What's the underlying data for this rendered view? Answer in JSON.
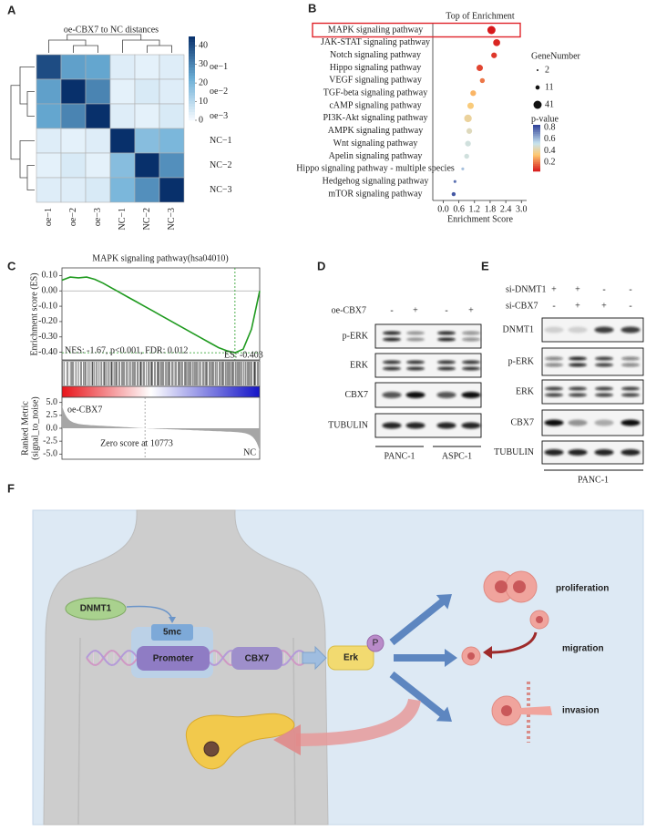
{
  "panel_labels": [
    "A",
    "B",
    "C",
    "D",
    "E",
    "F"
  ],
  "heatmap": {
    "type": "heatmap",
    "title": "oe-CBX7 to NC distances",
    "rows": [
      "oe−1",
      "oe−2",
      "oe−3",
      "NC−1",
      "NC−2",
      "NC−3"
    ],
    "columns": [
      "oe−1",
      "oe−2",
      "oe−3",
      "NC−1",
      "NC−2",
      "NC−3"
    ],
    "values": [
      [
        40,
        25,
        24,
        4,
        3,
        4
      ],
      [
        25,
        45,
        30,
        3,
        5,
        4
      ],
      [
        24,
        30,
        45,
        4,
        3,
        5
      ],
      [
        4,
        3,
        4,
        45,
        18,
        20
      ],
      [
        3,
        5,
        3,
        18,
        45,
        28
      ],
      [
        4,
        4,
        5,
        20,
        28,
        45
      ]
    ],
    "clim": [
      0,
      45
    ],
    "colorbar_ticks": [
      0,
      10,
      20,
      30,
      40
    ]
  },
  "enrichment": {
    "type": "scatter",
    "title": "Top of Enrichment",
    "categories": [
      "MAPK signaling pathway",
      "JAK-STAT signaling pathway",
      "Notch signaling pathway",
      "Hippo signaling pathway",
      "VEGF signaling pathway",
      "TGF-beta signaling pathway",
      "cAMP signaling pathway",
      "PI3K-Akt signaling pathway",
      "AMPK signaling pathway",
      "Wnt signaling pathway",
      "Apelin signaling pathway",
      "Hippo signaling pathway - multiple species",
      "Hedgehog signaling pathway",
      "mTOR signaling pathway"
    ],
    "x": [
      1.85,
      2.05,
      1.95,
      1.4,
      1.5,
      1.15,
      1.05,
      0.95,
      1.0,
      0.95,
      0.9,
      0.75,
      0.45,
      0.4
    ],
    "sizes": [
      41,
      30,
      20,
      25,
      15,
      20,
      25,
      35,
      20,
      20,
      15,
      5,
      5,
      10
    ],
    "pvalues": [
      0.05,
      0.07,
      0.1,
      0.12,
      0.2,
      0.3,
      0.35,
      0.4,
      0.45,
      0.5,
      0.5,
      0.6,
      0.75,
      0.8
    ],
    "xlabel": "Enrichment Score",
    "xlim": [
      -0.4,
      3.2
    ],
    "xticks": [
      {
        "value": 0,
        "label": "0.0"
      },
      0.6,
      1.2,
      1.8,
      2.4,
      {
        "value": 3,
        "label": "3.0"
      }
    ],
    "highlight": 0,
    "highlight_color": "#e0242b",
    "size_legend_title": "GeneNumber",
    "size_legend": [
      2,
      11,
      41
    ],
    "color_legend_title": "p-value",
    "color_legend_ticks": [
      0.8,
      0.6,
      0.4,
      0.2
    ],
    "clim": [
      0.05,
      0.85
    ]
  },
  "gsea": {
    "type": "line",
    "title": "MAPK signaling pathway(hsa04010)",
    "ylabel": "Enrichment score (ES)",
    "values": [
      0.07,
      0.09,
      0.085,
      0.09,
      0.075,
      0.05,
      0.02,
      -0.01,
      -0.04,
      -0.07,
      -0.1,
      -0.13,
      -0.16,
      -0.19,
      -0.22,
      -0.25,
      -0.28,
      -0.31,
      -0.34,
      -0.37,
      -0.39,
      -0.403,
      -0.38,
      -0.25,
      0.0
    ],
    "color": "#1f9a1f",
    "ylim": [
      -0.45,
      0.15
    ],
    "yticks": [
      {
        "value": 0.1,
        "label": "0.10"
      },
      {
        "value": 0,
        "label": "0.00"
      },
      {
        "value": -0.1,
        "label": "-0.10"
      },
      {
        "value": -0.2,
        "label": "-0.20"
      },
      {
        "value": -0.3,
        "label": "-0.30"
      },
      {
        "value": -0.4,
        "label": "-0.40"
      }
    ],
    "annotation": "NES: -1.67, p<0.001, FDR: 0.012",
    "es_label": "ES: -0.403",
    "metric_ylabel": [
      "Ranked Metric",
      "(signal_to_noise)"
    ],
    "metric_ylim": [
      -6,
      6
    ],
    "metric_yticks": [
      {
        "value": 5,
        "label": "5.0"
      },
      {
        "value": 2.5,
        "label": "2.5"
      },
      {
        "value": 0,
        "label": "0.0"
      },
      {
        "value": -2.5,
        "label": "-2.5"
      },
      {
        "value": -5,
        "label": "-5.0"
      }
    ],
    "left_label": "oe-CBX7",
    "zero_label": "Zero score at 10773",
    "right_label": "NC"
  },
  "blot_d": {
    "condition": "oe-CBX7",
    "signs": [
      "-",
      "+",
      "-",
      "+"
    ],
    "rows": [
      "p-ERK",
      "ERK",
      "CBX7",
      "TUBULIN"
    ],
    "groups": [
      "PANC-1",
      "ASPC-1"
    ]
  },
  "blot_e": {
    "conditions": [
      {
        "name": "si-DNMT1",
        "signs": [
          "+",
          "+",
          "-",
          "-"
        ]
      },
      {
        "name": "si-CBX7",
        "signs": [
          "-",
          "+",
          "+",
          "-"
        ]
      }
    ],
    "rows": [
      "DNMT1",
      "p-ERK",
      "ERK",
      "CBX7",
      "TUBULIN"
    ],
    "group": "PANC-1"
  },
  "diagram": {
    "dnmt1": "DNMT1",
    "mark": "5mc",
    "promoter": "Promoter",
    "gene": "CBX7",
    "kinase": "Erk",
    "phospho": "P",
    "outcomes": [
      "proliferation",
      "migration",
      "invasion"
    ]
  }
}
